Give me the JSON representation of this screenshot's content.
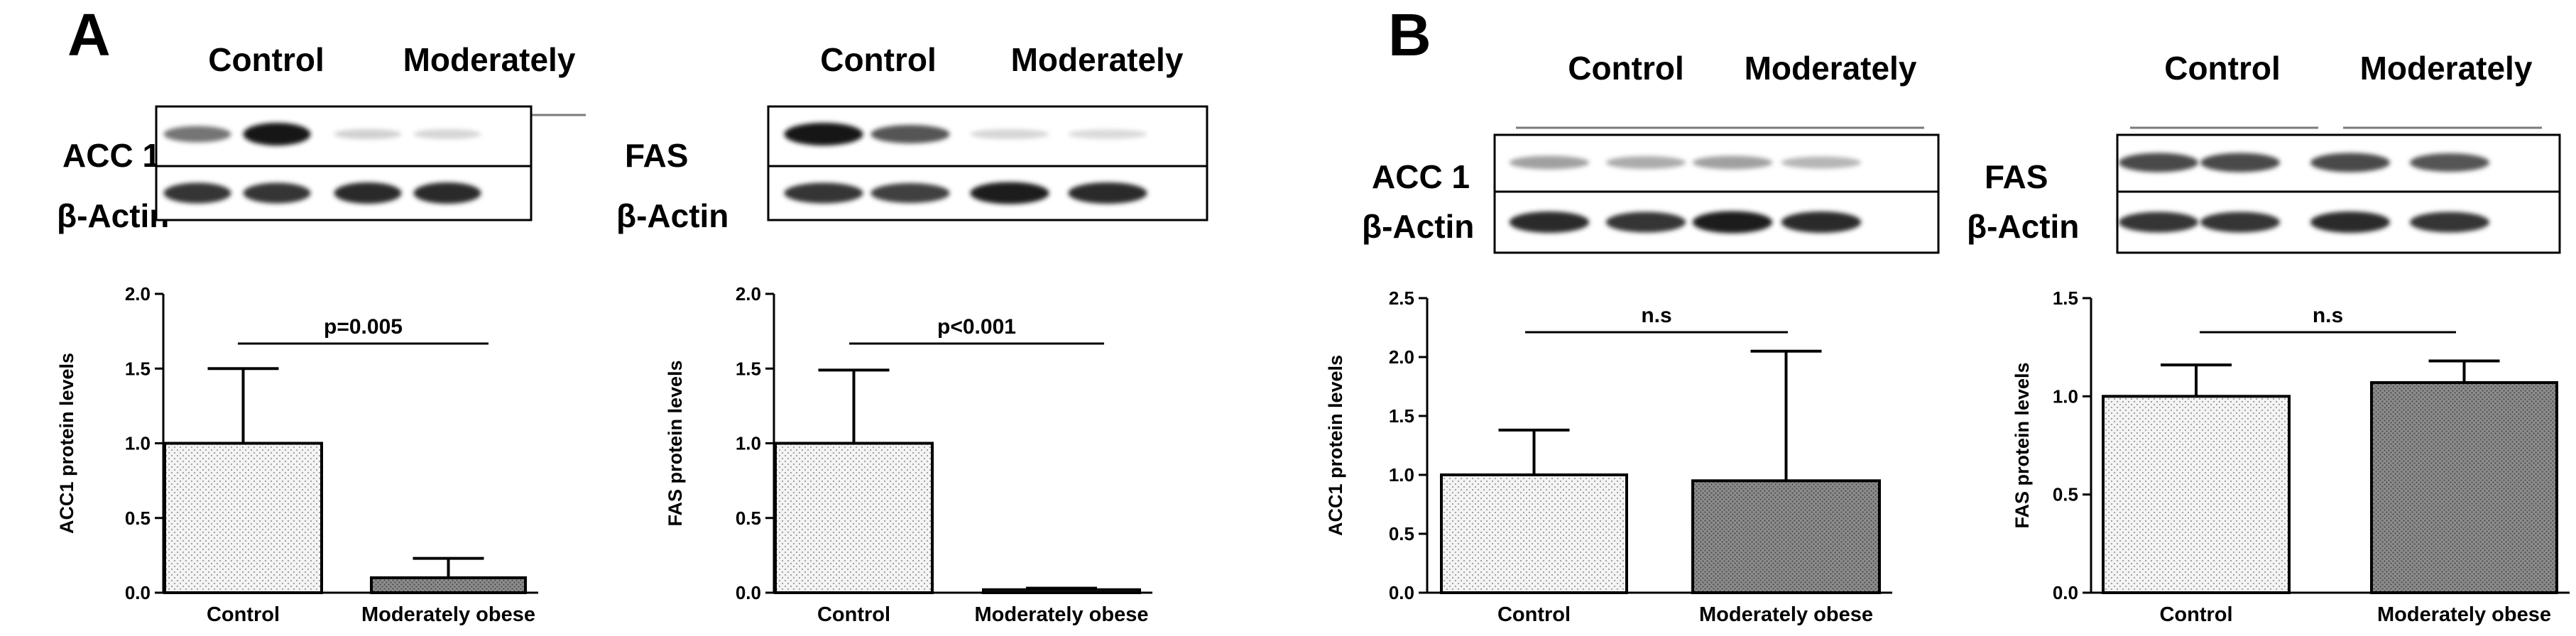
{
  "panels": [
    {
      "letter": "A",
      "blots": [
        {
          "groups": [
            "Control",
            "Moderately"
          ],
          "target_label": "ACC 1",
          "loading_label": "β-Actin",
          "target_band_intensity": [
            0.55,
            1.0,
            0.12,
            0.1
          ],
          "loading_band_intensity": [
            0.85,
            0.85,
            0.9,
            0.9
          ]
        },
        {
          "groups": [
            "Control",
            "Moderately"
          ],
          "target_label": "FAS",
          "loading_label": "β-Actin",
          "target_band_intensity": [
            1.0,
            0.7,
            0.1,
            0.08
          ],
          "loading_band_intensity": [
            0.85,
            0.8,
            0.95,
            0.9
          ]
        }
      ]
    },
    {
      "letter": "B",
      "blots": [
        {
          "groups": [
            "Control",
            "Moderately"
          ],
          "target_label": "ACC 1",
          "loading_label": "β-Actin",
          "target_band_intensity": [
            0.35,
            0.3,
            0.35,
            0.25
          ],
          "loading_band_intensity": [
            0.9,
            0.85,
            0.95,
            0.9
          ]
        },
        {
          "groups": [
            "Control",
            "Moderately"
          ],
          "target_label": "FAS",
          "loading_label": "β-Actin",
          "target_band_intensity": [
            0.75,
            0.75,
            0.75,
            0.7
          ],
          "loading_band_intensity": [
            0.85,
            0.85,
            0.9,
            0.85
          ]
        }
      ]
    }
  ],
  "chart_data": [
    {
      "type": "bar",
      "panel": "A",
      "categories": [
        "Control",
        "Moderately obese"
      ],
      "values": [
        1.0,
        0.1
      ],
      "errors": [
        0.5,
        0.13
      ],
      "ylabel": "ACC1 protein levels",
      "ylim": [
        0,
        2.0
      ],
      "yticks": [
        "0.0",
        "0.5",
        "1.0",
        "1.5",
        "2.0"
      ],
      "significance": "p=0.005",
      "bar_fill": [
        "#f2f2f2",
        "#9a9a9a"
      ]
    },
    {
      "type": "bar",
      "panel": "A",
      "categories": [
        "Control",
        "Moderately obese"
      ],
      "values": [
        1.0,
        0.02
      ],
      "errors": [
        0.49,
        0.01
      ],
      "ylabel": "FAS protein levels",
      "ylim": [
        0,
        2.0
      ],
      "yticks": [
        "0.0",
        "0.5",
        "1.0",
        "1.5",
        "2.0"
      ],
      "significance": "p<0.001",
      "bar_fill": [
        "#f2f2f2",
        "#9a9a9a"
      ]
    },
    {
      "type": "bar",
      "panel": "B",
      "categories": [
        "Control",
        "Moderately obese"
      ],
      "values": [
        1.0,
        0.95
      ],
      "errors": [
        0.38,
        1.1
      ],
      "ylabel": "ACC1 protein levels",
      "ylim": [
        0,
        2.5
      ],
      "yticks": [
        "0.0",
        "0.5",
        "1.0",
        "1.5",
        "2.0",
        "2.5"
      ],
      "significance": "n.s",
      "bar_fill": [
        "#f2f2f2",
        "#9a9a9a"
      ]
    },
    {
      "type": "bar",
      "panel": "B",
      "categories": [
        "Control",
        "Moderately obese"
      ],
      "values": [
        1.0,
        1.07
      ],
      "errors": [
        0.16,
        0.11
      ],
      "ylabel": "FAS protein levels",
      "ylim": [
        0,
        1.5
      ],
      "yticks": [
        "0.0",
        "0.5",
        "1.0",
        "1.5"
      ],
      "significance": "n.s",
      "bar_fill": [
        "#f2f2f2",
        "#9a9a9a"
      ]
    }
  ]
}
